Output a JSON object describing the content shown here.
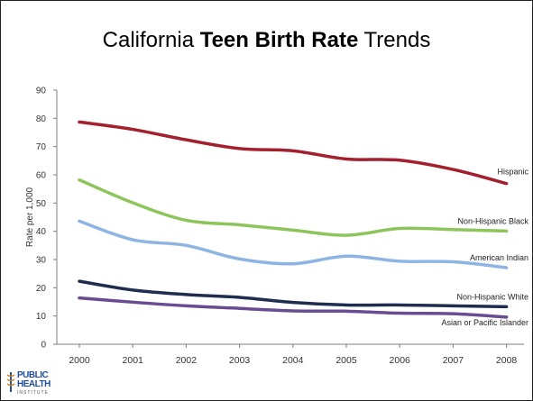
{
  "slide": {
    "title_pre": "California ",
    "title_bold": "Teen Birth Rate",
    "title_post": " Trends"
  },
  "logo": {
    "line1": "PUBLIC",
    "line2": "HEALTH",
    "line3": "INSTITUTE",
    "color": "#1f4e9c"
  },
  "chart_data": {
    "type": "line",
    "title": "",
    "xlabel": "",
    "ylabel": "Rate per 1,000",
    "x": [
      "2000",
      "2001",
      "2002",
      "2003",
      "2004",
      "2005",
      "2006",
      "2007",
      "2008"
    ],
    "ylim": [
      0,
      90
    ],
    "yticks": [
      0,
      10,
      20,
      30,
      40,
      50,
      60,
      70,
      80,
      90
    ],
    "grid": false,
    "legend": "inline labels at right end of lines",
    "series": [
      {
        "name": "Hispanic",
        "color": "#a3202e",
        "values": [
          78.7,
          76.1,
          72.4,
          69.3,
          68.5,
          65.6,
          65.2,
          61.9,
          56.9
        ]
      },
      {
        "name": "Non-Hispanic Black",
        "color": "#8dc45b",
        "values": [
          58.2,
          50.1,
          43.9,
          42.3,
          40.4,
          38.6,
          41.0,
          40.6,
          40.1
        ]
      },
      {
        "name": "American Indian",
        "color": "#8db4e2",
        "values": [
          43.6,
          37.0,
          35.0,
          30.2,
          28.5,
          31.2,
          29.4,
          29.2,
          27.1
        ]
      },
      {
        "name": "Non-Hispanic White",
        "color": "#1f2d4e",
        "values": [
          22.3,
          19.2,
          17.6,
          16.6,
          14.8,
          13.9,
          13.9,
          13.6,
          13.3
        ]
      },
      {
        "name": "Asian or Pacific Islander",
        "color": "#6a4c93",
        "values": [
          16.4,
          14.9,
          13.6,
          12.7,
          11.8,
          11.7,
          11.0,
          10.8,
          9.6
        ]
      }
    ]
  }
}
